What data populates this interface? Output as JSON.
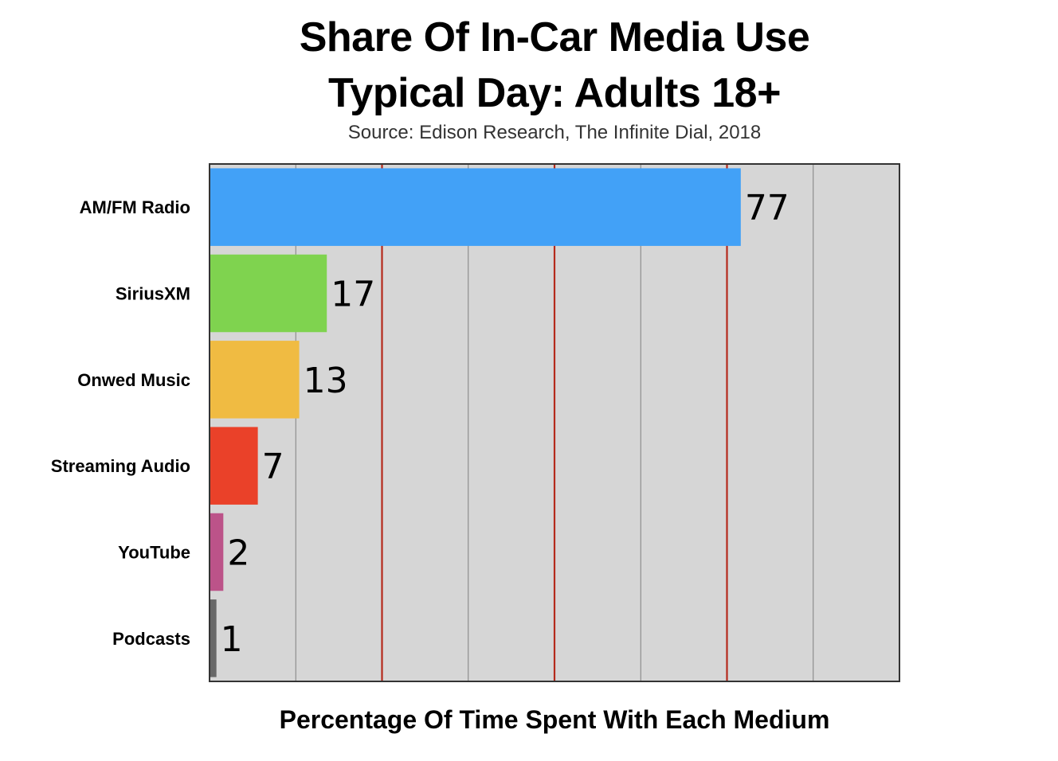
{
  "chart_data": {
    "type": "bar",
    "orientation": "horizontal",
    "title_lines": [
      "Share Of In-Car Media Use",
      "Typical Day: Adults 18+"
    ],
    "subtitle": "Source: Edison Research, The Infinite Dial, 2018",
    "xlabel": "Percentage Of Time Spent With Each Medium",
    "ylabel": "",
    "categories": [
      "AM/FM Radio",
      "SiriusXM",
      "Onwed Music",
      "Streaming Audio",
      "YouTube",
      "Podcasts"
    ],
    "values": [
      77,
      17,
      13,
      7,
      2,
      1
    ],
    "colors": [
      "#42a1f7",
      "#7fd34f",
      "#f0bb42",
      "#ea4129",
      "#bc5389",
      "#686868"
    ],
    "xlim": [
      0,
      100
    ],
    "gridlines": [
      {
        "value": 12.5,
        "color": "#808080"
      },
      {
        "value": 25,
        "color": "#b5291c"
      },
      {
        "value": 37.5,
        "color": "#808080"
      },
      {
        "value": 50,
        "color": "#b5291c"
      },
      {
        "value": 62.5,
        "color": "#808080"
      },
      {
        "value": 75,
        "color": "#b5291c"
      },
      {
        "value": 87.5,
        "color": "#808080"
      }
    ],
    "plot_background": "#d6d6d6",
    "data_labels": true,
    "tick_labels_shown": false
  }
}
